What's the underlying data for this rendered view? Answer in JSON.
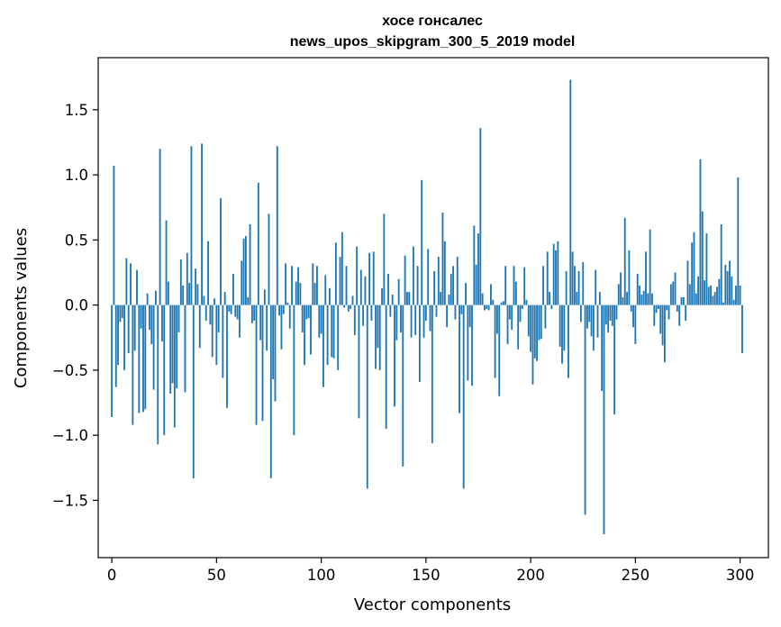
{
  "chart_data": {
    "type": "bar",
    "title": "хосе гонсалес",
    "subtitle": "news_upos_skipgram_300_5_2019 model",
    "xlabel": "Vector components",
    "ylabel": "Components values",
    "xlim": [
      -6.5,
      313.5
    ],
    "ylim": [
      -1.94,
      1.9
    ],
    "xticks": [
      0,
      50,
      100,
      150,
      200,
      250,
      300
    ],
    "xtick_labels": [
      "0",
      "50",
      "100",
      "150",
      "200",
      "250",
      "300"
    ],
    "yticks": [
      -1.5,
      -1.0,
      -0.5,
      0.0,
      0.5,
      1.0,
      1.5
    ],
    "ytick_labels": [
      "−1.5",
      "−1.0",
      "−0.5",
      "0.0",
      "0.5",
      "1.0",
      "1.5"
    ],
    "bar_color": "#1f77b4",
    "values": [
      -0.86,
      1.07,
      -0.63,
      -0.46,
      -0.13,
      -0.1,
      -0.5,
      0.36,
      -0.37,
      0.32,
      -0.92,
      -0.35,
      0.27,
      -0.83,
      -0.18,
      -0.82,
      -0.8,
      0.09,
      -0.19,
      -0.3,
      -0.65,
      0.11,
      -1.07,
      1.2,
      -0.28,
      -1.0,
      0.65,
      0.18,
      -0.68,
      -0.6,
      -0.94,
      -0.64,
      -0.21,
      0.35,
      0.15,
      -0.67,
      0.4,
      0.17,
      1.22,
      -1.33,
      0.28,
      0.16,
      -0.33,
      1.24,
      0.07,
      -0.12,
      0.49,
      -0.15,
      -0.4,
      0.05,
      -0.46,
      -0.21,
      0.82,
      -0.56,
      0.1,
      -0.79,
      -0.05,
      -0.07,
      0.24,
      -0.09,
      -0.11,
      -0.25,
      0.34,
      0.51,
      0.53,
      0.06,
      0.62,
      -0.14,
      -0.12,
      -0.92,
      0.94,
      -0.27,
      -0.89,
      0.12,
      -0.35,
      0.7,
      -1.33,
      -0.57,
      -0.74,
      1.22,
      -0.08,
      -0.34,
      -0.07,
      0.32,
      0.02,
      -0.18,
      0.3,
      -1.0,
      0.18,
      0.29,
      0.17,
      -0.21,
      -0.46,
      -0.11,
      -0.1,
      -0.38,
      0.32,
      0.17,
      0.3,
      -0.25,
      -0.22,
      -0.63,
      0.23,
      -0.46,
      0.13,
      -0.4,
      -0.41,
      0.48,
      -0.5,
      0.37,
      0.56,
      -0.02,
      0.3,
      -0.05,
      -0.03,
      0.07,
      -0.23,
      0.45,
      -0.87,
      0.27,
      -0.16,
      0.22,
      -1.41,
      0.4,
      -0.12,
      0.41,
      -0.49,
      -0.33,
      -0.5,
      0.13,
      0.7,
      -0.95,
      0.24,
      -0.09,
      0.08,
      -0.78,
      -0.27,
      0.2,
      -0.21,
      -1.24,
      0.38,
      0.1,
      0.1,
      -0.25,
      0.45,
      -0.23,
      0.3,
      -0.59,
      0.96,
      -0.25,
      -0.12,
      0.43,
      -0.2,
      -1.06,
      0.26,
      -0.09,
      0.37,
      0.1,
      0.71,
      0.49,
      -0.17,
      0.08,
      0.24,
      0.3,
      -0.11,
      0.37,
      -0.83,
      -0.07,
      -1.41,
      0.17,
      -0.58,
      -0.17,
      -0.62,
      0.61,
      0.31,
      0.55,
      1.36,
      0.09,
      -0.04,
      -0.03,
      -0.04,
      0.16,
      0.04,
      -0.56,
      -0.22,
      -0.7,
      0.02,
      0.03,
      0.3,
      -0.3,
      -0.11,
      -0.19,
      0.3,
      0.18,
      -0.34,
      -0.13,
      -0.03,
      0.29,
      0.04,
      -0.24,
      -0.36,
      -0.61,
      -0.41,
      -0.43,
      -0.27,
      -0.26,
      0.3,
      -0.18,
      0.41,
      0.1,
      -0.03,
      0.47,
      0.42,
      0.49,
      -0.32,
      -0.45,
      -0.35,
      0.26,
      -0.56,
      1.73,
      0.41,
      0.3,
      0.1,
      0.26,
      -0.13,
      0.33,
      -1.61,
      -0.18,
      -0.13,
      -0.24,
      -0.35,
      0.27,
      -0.25,
      0.1,
      -0.66,
      -1.76,
      -0.15,
      -0.21,
      -0.12,
      -0.16,
      -0.84,
      -0.11,
      0.16,
      0.25,
      0.06,
      0.67,
      0.1,
      0.42,
      -0.05,
      -0.17,
      -0.3,
      0.24,
      0.15,
      0.08,
      0.11,
      0.41,
      0.09,
      0.58,
      0.09,
      -0.16,
      -0.06,
      -0.03,
      -0.22,
      -0.31,
      -0.44,
      -0.04,
      -0.11,
      0.16,
      0.18,
      0.25,
      -0.05,
      -0.16,
      0.06,
      0.06,
      -0.12,
      0.34,
      0.16,
      0.48,
      0.56,
      0.09,
      0.22,
      1.12,
      0.72,
      0.19,
      0.55,
      0.14,
      0.15,
      0.07,
      0.1,
      0.14,
      0.2,
      0.62,
      0.02,
      0.31,
      0.26,
      0.34,
      0.22,
      0.04,
      0.15,
      0.98,
      0.15,
      -0.37
    ]
  }
}
